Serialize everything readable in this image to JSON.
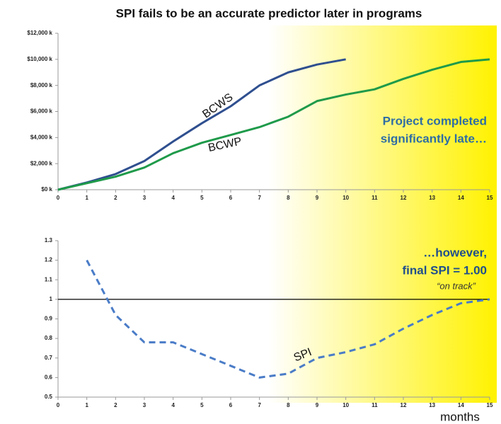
{
  "chart_data": [
    {
      "type": "line",
      "title": "SPI fails to be an accurate predictor later in programs",
      "x": [
        0,
        1,
        2,
        3,
        4,
        5,
        6,
        7,
        8,
        9,
        10,
        11,
        12,
        13,
        14,
        15
      ],
      "series": [
        {
          "name": "BCWS",
          "color": "#2f4f8f",
          "values": [
            0,
            550,
            1200,
            2200,
            3700,
            5100,
            6400,
            8000,
            9000,
            9600,
            10000,
            null,
            null,
            null,
            null,
            null
          ]
        },
        {
          "name": "BCWP",
          "color": "#1f9a4a",
          "values": [
            0,
            500,
            1000,
            1700,
            2800,
            3600,
            4200,
            4800,
            5600,
            6800,
            7300,
            7700,
            8500,
            9200,
            9800,
            10000
          ]
        }
      ],
      "xlim": [
        0,
        15
      ],
      "xticks": [
        0,
        1,
        2,
        3,
        4,
        5,
        6,
        7,
        8,
        9,
        10,
        11,
        12,
        13,
        14,
        15
      ],
      "ylim": [
        0,
        12000
      ],
      "yticks": [
        {
          "value": 0,
          "label": "$0 k"
        },
        {
          "value": 2000,
          "label": "$2,000 k"
        },
        {
          "value": 4000,
          "label": "$4,000 k"
        },
        {
          "value": 6000,
          "label": "$6,000 k"
        },
        {
          "value": 8000,
          "label": "$8,000 k"
        },
        {
          "value": 10000,
          "label": "$10,000 k"
        },
        {
          "value": 12000,
          "label": "$12,000 k"
        }
      ],
      "annotation": [
        "Project completed",
        "significantly late…"
      ]
    },
    {
      "type": "line",
      "x": [
        0,
        1,
        2,
        3,
        4,
        5,
        6,
        7,
        8,
        9,
        10,
        11,
        12,
        13,
        14,
        15
      ],
      "series": [
        {
          "name": "SPI",
          "color": "#4a7cc7",
          "dashed": true,
          "values": [
            null,
            1.2,
            0.92,
            0.78,
            0.78,
            0.72,
            0.66,
            0.6,
            0.62,
            0.7,
            0.73,
            0.77,
            0.85,
            0.92,
            0.98,
            1.0
          ]
        }
      ],
      "xlim": [
        0,
        15
      ],
      "xticks": [
        0,
        1,
        2,
        3,
        4,
        5,
        6,
        7,
        8,
        9,
        10,
        11,
        12,
        13,
        14,
        15
      ],
      "ylim": [
        0.5,
        1.3
      ],
      "yticks": [
        0.5,
        0.6,
        0.7,
        0.8,
        0.9,
        1,
        1.1,
        1.2,
        1.3
      ],
      "hline": 1,
      "annotation": [
        "…however,",
        "final  SPI = 1.00"
      ],
      "note": "“on track”",
      "xlabel": "months"
    }
  ]
}
